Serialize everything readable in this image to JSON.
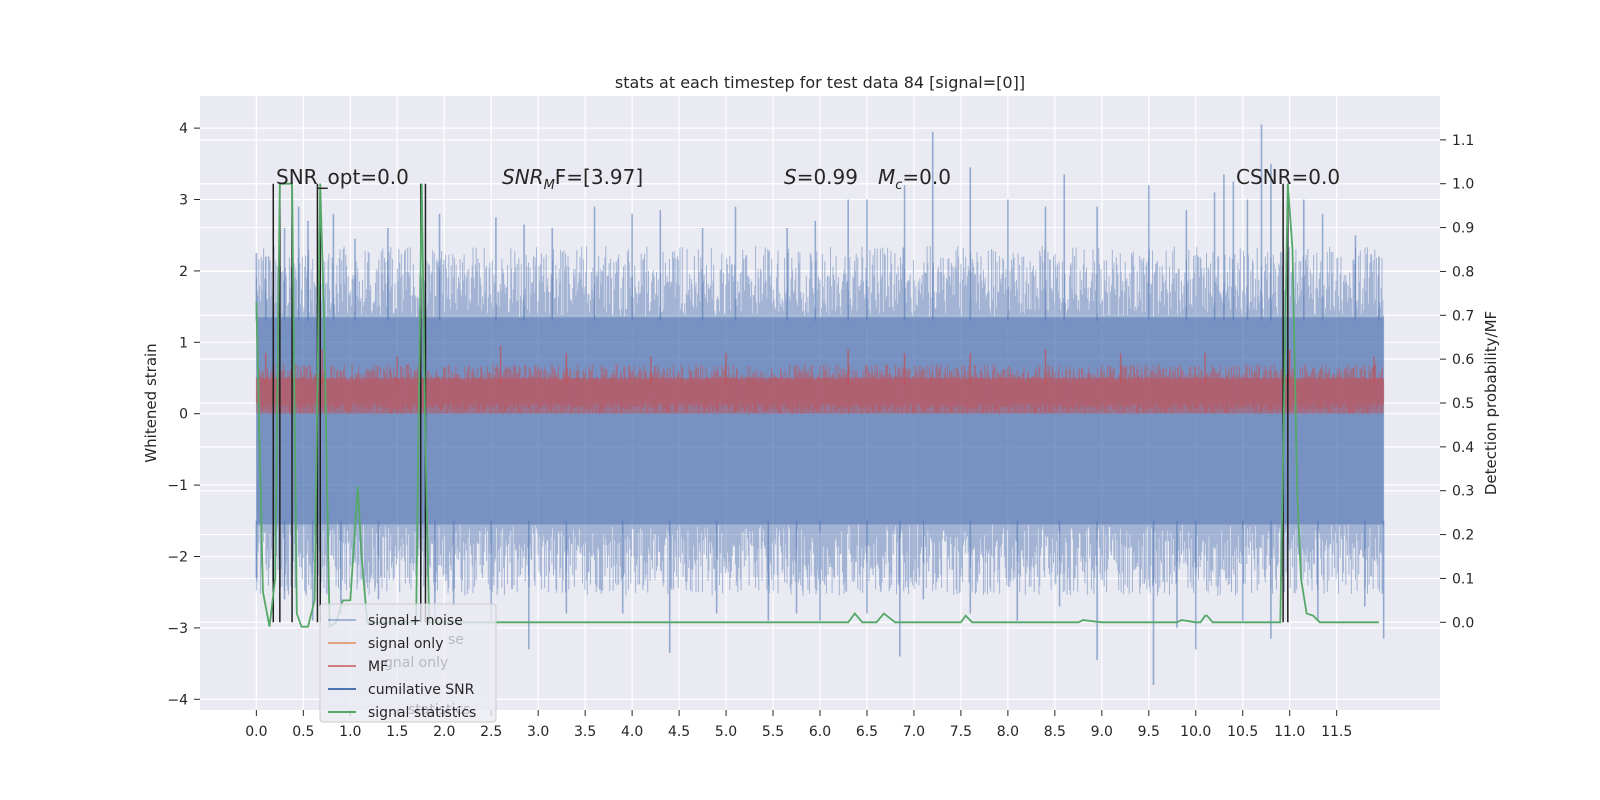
{
  "chart_data": {
    "type": "line",
    "title": "stats at each timestep for test data 84 [signal=[0]]",
    "xlabel": "",
    "ylabel_left": "Whitened strain",
    "ylabel_right": "Detection probability/MF",
    "xlim": [
      -0.6,
      12.6
    ],
    "ylim_left": [
      -4.15,
      4.45
    ],
    "ylim_right": [
      -0.2,
      1.2
    ],
    "grid": true,
    "background": "#eaeaf2",
    "x_ticks": [
      "0.0",
      "0.5",
      "1.0",
      "1.5",
      "2.0",
      "2.5",
      "3.0",
      "3.5",
      "4.0",
      "4.5",
      "5.0",
      "5.5",
      "6.0",
      "6.5",
      "7.0",
      "7.5",
      "8.0",
      "8.5",
      "9.0",
      "9.5",
      "10.0",
      "10.5",
      "11.0",
      "11.5"
    ],
    "y_left_ticks": [
      4,
      3,
      2,
      1,
      0,
      -1,
      -2,
      -3,
      -4
    ],
    "y_left_tick_labels": [
      "4",
      "3",
      "2",
      "1",
      "0",
      "−1",
      "−2",
      "−3",
      "−4"
    ],
    "y_right_ticks": [
      1.1,
      1.0,
      0.9,
      0.8,
      0.7,
      0.6,
      0.5,
      0.4,
      0.3,
      0.2,
      0.1,
      0.0
    ],
    "y_right_tick_labels": [
      "1.1",
      "1.0",
      "0.9",
      "0.8",
      "0.7",
      "0.6",
      "0.5",
      "0.4",
      "0.3",
      "0.2",
      "0.1",
      "0.0"
    ],
    "annotations": {
      "snr_opt": "SNR_opt=0.0",
      "snr_mf_main": "SNR",
      "snr_mf_sub": "M",
      "snr_mf_rest": "F=[3.97]",
      "s_var": "S",
      "s_val": "=0.99",
      "mc_var": "M",
      "mc_sub": "c",
      "mc_val": "=0.0",
      "csnr": "CSNR=0.0"
    },
    "legend": {
      "position": "lower-left",
      "entries": [
        {
          "label": "signal+ noise",
          "color": "#4c72b0",
          "alpha": 0.45
        },
        {
          "label": "signal only",
          "color": "#dd8452",
          "alpha": 0.7
        },
        {
          "label": "MF",
          "color": "#c44e52",
          "alpha": 0.7
        },
        {
          "label": "cumilative SNR",
          "color": "#4c72b0",
          "alpha": 1
        },
        {
          "label": "signal statistics",
          "color": "#55a868",
          "alpha": 1
        }
      ],
      "ghost_labels": [
        "se",
        "gnal only",
        "statistics"
      ]
    },
    "series": [
      {
        "name": "signal+ noise",
        "axis": "left",
        "color": "#4c72b0",
        "band_x": [
          0.0,
          12.0
        ],
        "envelope_upper_typical": 2.0,
        "envelope_lower_typical": -2.2,
        "spikes_up": [
          [
            0.0,
            2.25
          ],
          [
            0.1,
            2.2
          ],
          [
            0.3,
            2.6
          ],
          [
            0.45,
            2.9
          ],
          [
            0.55,
            2.7
          ],
          [
            0.82,
            2.8
          ],
          [
            1.05,
            2.45
          ],
          [
            1.4,
            2.6
          ],
          [
            1.95,
            2.8
          ],
          [
            2.55,
            2.75
          ],
          [
            2.85,
            2.65
          ],
          [
            3.15,
            2.6
          ],
          [
            3.6,
            2.9
          ],
          [
            4.0,
            2.8
          ],
          [
            4.3,
            2.85
          ],
          [
            4.75,
            2.6
          ],
          [
            5.1,
            2.9
          ],
          [
            5.65,
            2.6
          ],
          [
            5.95,
            2.7
          ],
          [
            6.3,
            3.0
          ],
          [
            6.5,
            3.0
          ],
          [
            6.9,
            3.2
          ],
          [
            7.2,
            3.95
          ],
          [
            7.6,
            3.45
          ],
          [
            8.0,
            3.0
          ],
          [
            8.4,
            2.9
          ],
          [
            8.6,
            3.35
          ],
          [
            8.95,
            2.9
          ],
          [
            9.5,
            3.2
          ],
          [
            9.9,
            2.85
          ],
          [
            10.2,
            3.1
          ],
          [
            10.3,
            3.35
          ],
          [
            10.4,
            3.25
          ],
          [
            10.55,
            3.0
          ],
          [
            10.7,
            4.05
          ],
          [
            10.8,
            3.5
          ],
          [
            11.15,
            3.0
          ],
          [
            11.35,
            2.8
          ],
          [
            11.7,
            2.5
          ],
          [
            11.95,
            2.2
          ]
        ],
        "spikes_down": [
          [
            0.0,
            -2.3
          ],
          [
            0.3,
            -2.6
          ],
          [
            0.6,
            -2.9
          ],
          [
            0.9,
            -2.8
          ],
          [
            1.3,
            -2.6
          ],
          [
            1.9,
            -2.9
          ],
          [
            2.1,
            -2.7
          ],
          [
            2.5,
            -2.9
          ],
          [
            2.9,
            -3.3
          ],
          [
            3.3,
            -2.8
          ],
          [
            3.9,
            -2.8
          ],
          [
            4.4,
            -3.35
          ],
          [
            4.9,
            -2.8
          ],
          [
            5.45,
            -2.9
          ],
          [
            5.75,
            -2.8
          ],
          [
            6.0,
            -2.9
          ],
          [
            6.5,
            -2.8
          ],
          [
            6.85,
            -3.4
          ],
          [
            7.1,
            -2.6
          ],
          [
            7.6,
            -2.8
          ],
          [
            8.1,
            -2.9
          ],
          [
            8.55,
            -2.7
          ],
          [
            8.95,
            -3.45
          ],
          [
            9.55,
            -3.8
          ],
          [
            9.8,
            -3.0
          ],
          [
            10.0,
            -3.3
          ],
          [
            10.5,
            -2.9
          ],
          [
            10.8,
            -3.15
          ],
          [
            11.3,
            -2.9
          ],
          [
            11.8,
            -2.7
          ],
          [
            12.0,
            -3.15
          ]
        ]
      },
      {
        "name": "MF",
        "axis": "left",
        "color": "#c44e52",
        "band_x": [
          0.0,
          12.0
        ],
        "lower": 0.0,
        "upper_typical": 0.7,
        "spikes_up": [
          [
            0.1,
            0.85
          ],
          [
            0.7,
            0.9
          ],
          [
            1.5,
            0.8
          ],
          [
            2.6,
            0.95
          ],
          [
            3.3,
            0.85
          ],
          [
            4.2,
            0.8
          ],
          [
            5.0,
            0.85
          ],
          [
            6.3,
            0.9
          ],
          [
            6.9,
            0.85
          ],
          [
            7.6,
            0.85
          ],
          [
            8.4,
            0.9
          ],
          [
            9.2,
            0.85
          ],
          [
            10.1,
            0.85
          ],
          [
            11.0,
            0.9
          ],
          [
            11.9,
            0.8
          ]
        ]
      },
      {
        "name": "cumilative SNR",
        "axis": "right",
        "color": "#1f1f1f",
        "vertical_lines": [
          [
            0.18,
            0.0,
            1.0
          ],
          [
            0.25,
            0.0,
            1.0
          ],
          [
            0.38,
            0.0,
            1.0
          ],
          [
            0.65,
            0.0,
            1.0
          ],
          [
            0.68,
            0.0,
            1.0
          ],
          [
            1.75,
            0.0,
            1.0
          ],
          [
            1.8,
            0.0,
            1.0
          ],
          [
            10.93,
            0.0,
            1.0
          ],
          [
            10.98,
            0.0,
            1.0
          ]
        ]
      },
      {
        "name": "signal statistics",
        "axis": "right",
        "color": "#55a868",
        "x": [
          0.0,
          0.07,
          0.14,
          0.2,
          0.25,
          0.28,
          0.33,
          0.38,
          0.43,
          0.48,
          0.55,
          0.62,
          0.68,
          0.72,
          0.78,
          0.85,
          0.92,
          1.0,
          1.08,
          1.12,
          1.18,
          1.25,
          1.32,
          1.4,
          1.5,
          1.6,
          1.7,
          1.76,
          1.8,
          1.84,
          1.88,
          1.95,
          2.05,
          2.2,
          2.5,
          3.0,
          3.5,
          3.75,
          4.0,
          4.5,
          5.0,
          5.5,
          6.0,
          6.2,
          6.3,
          6.37,
          6.45,
          6.55,
          6.6,
          6.68,
          6.8,
          7.0,
          7.3,
          7.5,
          7.55,
          7.62,
          7.7,
          8.0,
          8.5,
          8.75,
          8.8,
          9.0,
          9.5,
          9.8,
          9.85,
          10.0,
          10.05,
          10.1,
          10.12,
          10.18,
          10.25,
          10.5,
          10.9,
          10.98,
          11.03,
          11.08,
          11.12,
          11.18,
          11.25,
          11.32,
          11.45,
          11.6,
          11.75,
          11.95
        ],
        "y": [
          0.73,
          0.07,
          -0.01,
          0.1,
          1.0,
          1.0,
          1.0,
          1.0,
          0.02,
          -0.01,
          -0.01,
          0.05,
          1.0,
          0.7,
          -0.01,
          0.0,
          0.05,
          0.05,
          0.31,
          0.15,
          0.0,
          0.0,
          0.0,
          0.0,
          0.0,
          0.0,
          0.0,
          1.0,
          0.4,
          0.0,
          0.0,
          0.0,
          0.0,
          0.0,
          0.0,
          0.0,
          0.0,
          0.0,
          0.0,
          0.0,
          0.0,
          0.0,
          0.0,
          0.0,
          0.0,
          0.02,
          0.0,
          0.0,
          0.0,
          0.02,
          0.0,
          0.0,
          0.0,
          0.0,
          0.015,
          0.0,
          0.0,
          0.0,
          0.0,
          0.0,
          0.005,
          0.0,
          0.0,
          0.0,
          0.005,
          0.0,
          0.0,
          0.015,
          0.015,
          0.0,
          0.0,
          0.0,
          0.0,
          1.0,
          0.85,
          0.3,
          0.1,
          0.02,
          0.015,
          0.0,
          0.0,
          0.0,
          0.0,
          0.0
        ]
      }
    ]
  }
}
